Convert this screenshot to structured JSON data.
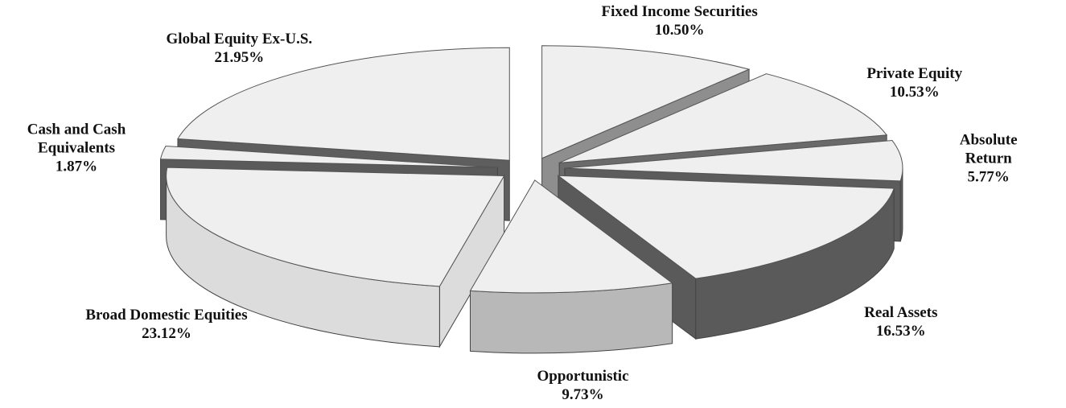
{
  "chart_data": {
    "type": "pie3d",
    "categories": [
      "Fixed Income Securities",
      "Private Equity",
      "Absolute Return",
      "Real Assets",
      "Opportunistic",
      "Broad Domestic Equities",
      "Cash and Cash Equivalents",
      "Global Equity Ex-U.S."
    ],
    "values": [
      10.5,
      10.53,
      5.77,
      16.53,
      9.73,
      23.12,
      1.87,
      21.95
    ],
    "value_labels": [
      "10.50%",
      "10.53%",
      "5.77%",
      "16.53%",
      "9.73%",
      "23.12%",
      "1.87%",
      "21.95%"
    ],
    "colors": [
      "#8e8e8e",
      "#6a6a6a",
      "#5c5c5c",
      "#5a5a5a",
      "#b8b8b8",
      "#dcdcdc",
      "#5a5a5a",
      "#5e5e5e"
    ]
  }
}
